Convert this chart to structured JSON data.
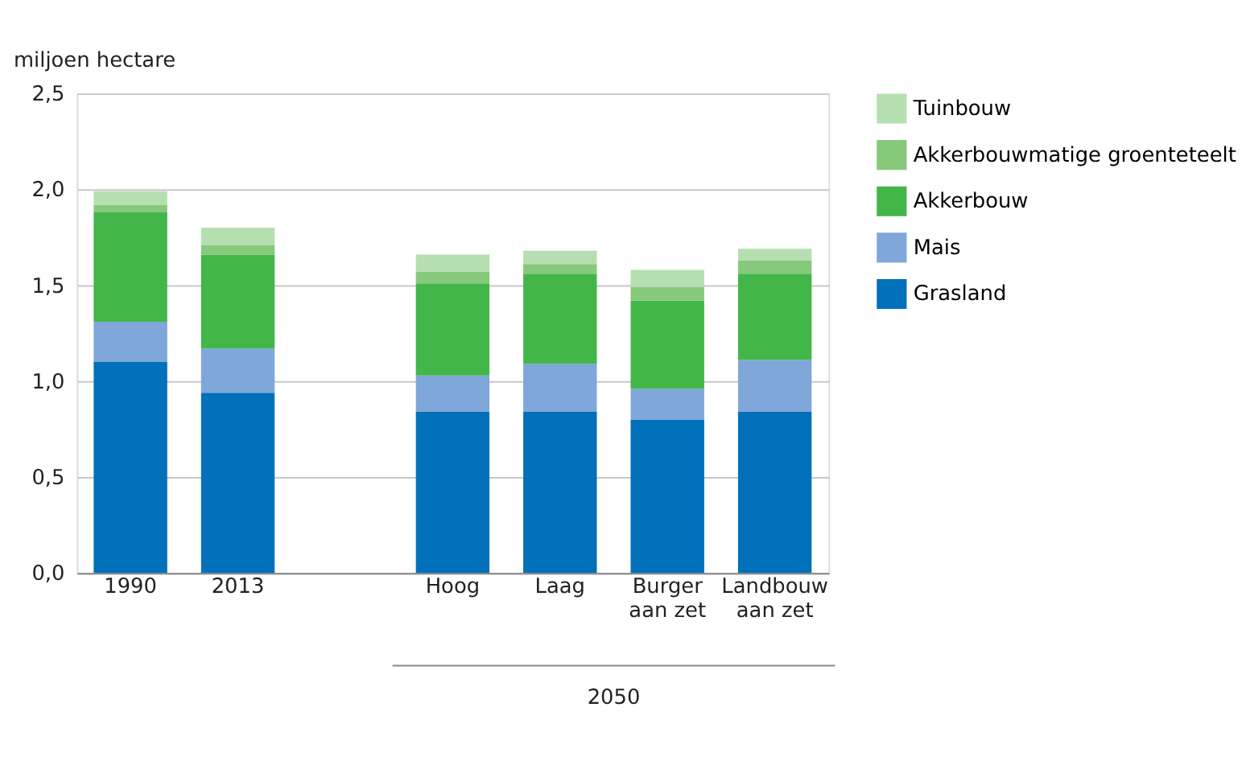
{
  "chart_data": {
    "type": "bar",
    "stacked": true,
    "ylabel": "miljoen hectare",
    "categories": [
      "1990",
      "2013",
      null,
      "Hoog",
      "Laag",
      "Burger aan zet",
      "Landbouw aan zet"
    ],
    "series": [
      {
        "name": "Grasland",
        "color": "#0070bb",
        "values": [
          1.1,
          0.94,
          null,
          0.84,
          0.84,
          0.8,
          0.84
        ]
      },
      {
        "name": "Mais",
        "color": "#7fa7d9",
        "values": [
          0.21,
          0.23,
          null,
          0.19,
          0.25,
          0.16,
          0.27
        ]
      },
      {
        "name": "Akkerbouw",
        "color": "#43b649",
        "values": [
          0.57,
          0.49,
          null,
          0.48,
          0.47,
          0.46,
          0.45
        ]
      },
      {
        "name": "Akkerbouwmatige groenteteelt",
        "color": "#86c97a",
        "values": [
          0.04,
          0.05,
          null,
          0.06,
          0.05,
          0.07,
          0.07
        ]
      },
      {
        "name": "Tuinbouw",
        "color": "#b5dfb0",
        "values": [
          0.07,
          0.09,
          null,
          0.09,
          0.07,
          0.09,
          0.06
        ]
      }
    ],
    "ylim": [
      0,
      2.5
    ],
    "yticks": [
      {
        "value": 0,
        "label": "0,0"
      },
      {
        "value": 0.5,
        "label": "0,5"
      },
      {
        "value": 1,
        "label": "1,0"
      },
      {
        "value": 1.5,
        "label": "1,5"
      },
      {
        "value": 2,
        "label": "2,0"
      },
      {
        "value": 2.5,
        "label": "2,5"
      }
    ],
    "grid": "y",
    "legend": "top right",
    "annotations": [
      "2050"
    ]
  }
}
